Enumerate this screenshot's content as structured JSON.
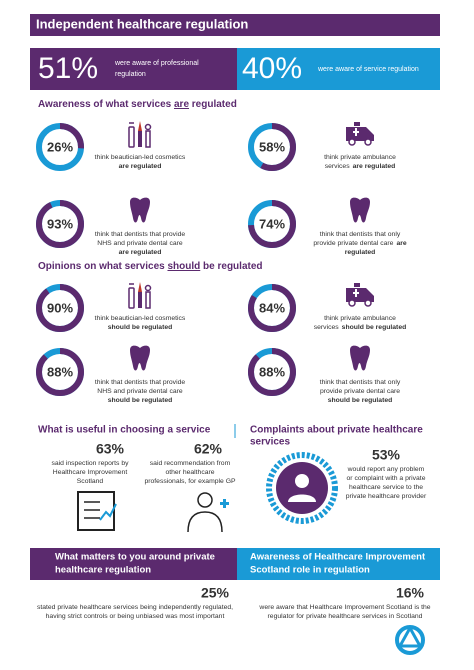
{
  "header": {
    "title": "Independent healthcare regulation"
  },
  "headline": [
    {
      "stat": "51%",
      "text": [
        "were aware of professional",
        "regulation"
      ]
    },
    {
      "stat": "40%",
      "text": [
        "were aware of service regulation"
      ]
    }
  ],
  "awareness": {
    "title": {
      "before": "Awareness of what services ",
      "emph": "are",
      "after": " regulated"
    },
    "items": [
      {
        "value": 26,
        "label": "26%",
        "icon": "cosmetics",
        "lines": [
          {
            "text": "think beautician-led cosmetics"
          },
          {
            "strong": "are regulated"
          }
        ]
      },
      {
        "value": 58,
        "label": "58%",
        "icon": "ambulance",
        "lines": [
          {
            "text": "think private ambulance"
          },
          {
            "text": "services",
            "strong": "are regulated"
          }
        ]
      },
      {
        "value": 93,
        "label": "93%",
        "icon": "tooth",
        "lines": [
          {
            "text": "think that dentists that provide"
          },
          {
            "text": "NHS and private dental care"
          },
          {
            "strong": "are regulated"
          }
        ]
      },
      {
        "value": 74,
        "label": "74%",
        "icon": "tooth",
        "lines": [
          {
            "text": "think that dentists that only"
          },
          {
            "text": "provide private dental care",
            "strong": "are"
          },
          {
            "strong": "regulated"
          }
        ]
      }
    ]
  },
  "opinions": {
    "title": {
      "before": "Opinions on what services ",
      "emph": "should",
      "after": " be regulated"
    },
    "items": [
      {
        "value": 90,
        "label": "90%",
        "icon": "cosmetics",
        "lines": [
          {
            "text": "think beautician-led cosmetics"
          },
          {
            "strong": "should be regulated"
          }
        ]
      },
      {
        "value": 84,
        "label": "84%",
        "icon": "ambulance",
        "lines": [
          {
            "text": "think private ambulance"
          },
          {
            "text": "services",
            "strong": "should be regulated"
          }
        ]
      },
      {
        "value": 88,
        "label": "88%",
        "icon": "tooth",
        "lines": [
          {
            "text": "think that dentists that provide"
          },
          {
            "text": "NHS and private dental care"
          },
          {
            "strong": "should be regulated"
          }
        ]
      },
      {
        "value": 88,
        "label": "88%",
        "icon": "tooth",
        "lines": [
          {
            "text": "think that dentists that only"
          },
          {
            "text": "provide private dental care"
          },
          {
            "strong": "should be regulated"
          }
        ]
      }
    ]
  },
  "useful": {
    "title": "What is useful in choosing a service",
    "items": [
      {
        "stat": "63%",
        "text": [
          "said  inspection reports by",
          "Healthcare Improvement",
          "Scotland"
        ]
      },
      {
        "stat": "62%",
        "text": [
          "said recommendation from",
          "other healthcare",
          "professionals, for example GP"
        ]
      }
    ]
  },
  "complaints": {
    "title": [
      "Complaints about private healthcare",
      "services"
    ],
    "stat": "53%",
    "text": [
      "would report any problem",
      "or complaint with a private",
      "healthcare service to the",
      "private healthcare provider"
    ]
  },
  "matters": {
    "title": [
      "What matters to you around private",
      "healthcare regulation"
    ],
    "stat": "25%",
    "text": [
      "stated private healthcare services being independently regulated,",
      "having strict controls or being unbiased was most important"
    ]
  },
  "his": {
    "title": [
      "Awareness of Healthcare Improvement",
      "Scotland role in regulation"
    ],
    "stat": "16%",
    "text": [
      "were aware that Healthcare Improvement Scotland is the",
      "regulator for private healthcare services in Scotland"
    ]
  }
}
